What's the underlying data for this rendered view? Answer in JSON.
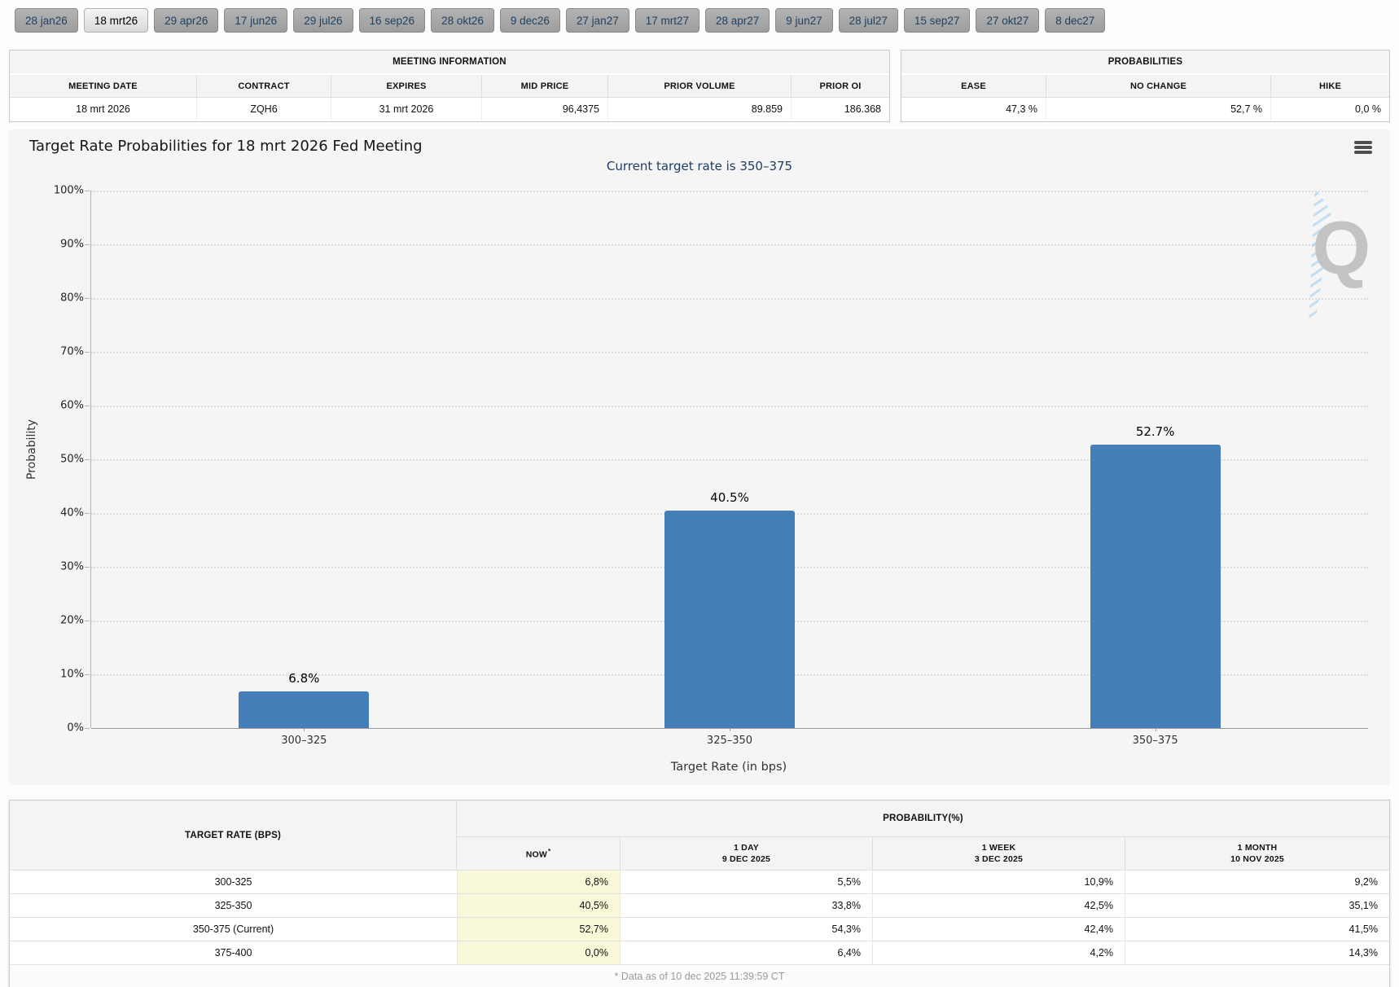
{
  "tabs": [
    {
      "label": "28 jan26",
      "selected": false
    },
    {
      "label": "18 mrt26",
      "selected": true
    },
    {
      "label": "29 apr26",
      "selected": false
    },
    {
      "label": "17 jun26",
      "selected": false
    },
    {
      "label": "29 jul26",
      "selected": false
    },
    {
      "label": "16 sep26",
      "selected": false
    },
    {
      "label": "28 okt26",
      "selected": false
    },
    {
      "label": "9 dec26",
      "selected": false
    },
    {
      "label": "27 jan27",
      "selected": false
    },
    {
      "label": "17 mrt27",
      "selected": false
    },
    {
      "label": "28 apr27",
      "selected": false
    },
    {
      "label": "9 jun27",
      "selected": false
    },
    {
      "label": "28 jul27",
      "selected": false
    },
    {
      "label": "15 sep27",
      "selected": false
    },
    {
      "label": "27 okt27",
      "selected": false
    },
    {
      "label": "8 dec27",
      "selected": false
    }
  ],
  "meeting_info": {
    "title": "MEETING INFORMATION",
    "columns": [
      {
        "header": "MEETING DATE",
        "value": "18 mrt 2026",
        "align": "center"
      },
      {
        "header": "CONTRACT",
        "value": "ZQH6",
        "align": "center"
      },
      {
        "header": "EXPIRES",
        "value": "31 mrt 2026",
        "align": "center"
      },
      {
        "header": "MID PRICE",
        "value": "96,4375",
        "align": "right"
      },
      {
        "header": "PRIOR VOLUME",
        "value": "89.859",
        "align": "right"
      },
      {
        "header": "PRIOR OI",
        "value": "186.368",
        "align": "right"
      }
    ]
  },
  "probabilities_panel": {
    "title": "PROBABILITIES",
    "columns": [
      {
        "header": "EASE",
        "value": "47,3 %"
      },
      {
        "header": "NO CHANGE",
        "value": "52,7 %"
      },
      {
        "header": "HIKE",
        "value": "0,0 %"
      }
    ]
  },
  "chart": {
    "title": "Target Rate Probabilities for 18 mrt 2026 Fed Meeting",
    "subtitle": "Current target rate is 350–375",
    "menu_icon": "hamburger-icon",
    "watermark_letter": "Q"
  },
  "chart_data": {
    "type": "bar",
    "categories": [
      "300–325",
      "325–350",
      "350–375"
    ],
    "values": [
      6.8,
      40.5,
      52.7
    ],
    "bar_labels": [
      "6.8%",
      "40.5%",
      "52.7%"
    ],
    "title": "Target Rate Probabilities for 18 mrt 2026 Fed Meeting",
    "subtitle": "Current target rate is 350–375",
    "xlabel": "Target Rate (in bps)",
    "ylabel": "Probability",
    "ylim": [
      0,
      100
    ],
    "ytick_step": 10,
    "ytick_suffix": "%",
    "grid": "horizontal-dotted",
    "legend": "none",
    "bar_color": "#4480b7"
  },
  "prob_table": {
    "rate_header": "TARGET RATE (BPS)",
    "group_header": "PROBABILITY(%)",
    "columns": [
      {
        "line1": "NOW",
        "sup": "*",
        "line2": ""
      },
      {
        "line1": "1 DAY",
        "line2": "9 DEC 2025"
      },
      {
        "line1": "1 WEEK",
        "line2": "3 DEC 2025"
      },
      {
        "line1": "1 MONTH",
        "line2": "10 NOV 2025"
      }
    ],
    "rows": [
      {
        "rate": "300-325",
        "values": [
          "6,8%",
          "5,5%",
          "10,9%",
          "9,2%"
        ]
      },
      {
        "rate": "325-350",
        "values": [
          "40,5%",
          "33,8%",
          "42,5%",
          "35,1%"
        ]
      },
      {
        "rate": "350-375 (Current)",
        "values": [
          "52,7%",
          "54,3%",
          "42,4%",
          "41,5%"
        ]
      },
      {
        "rate": "375-400",
        "values": [
          "0,0%",
          "6,4%",
          "4,2%",
          "14,3%"
        ]
      }
    ],
    "footnote": "* Data as of 10 dec 2025 11:39:59 CT",
    "now_highlight_color": "#f8f8d8"
  }
}
